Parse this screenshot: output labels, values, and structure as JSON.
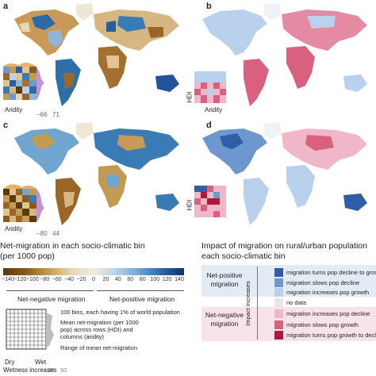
{
  "panels": {
    "a": {
      "letter": "a",
      "inset_xlabel": "Aridity",
      "inset_min": "−66",
      "inset_max": "71"
    },
    "b": {
      "letter": "b",
      "inset_xlabel": "Aridity",
      "inset_ylabel": "HDI"
    },
    "c": {
      "letter": "c",
      "inset_xlabel": "Aridity",
      "inset_min": "−80",
      "inset_max": "44"
    },
    "d": {
      "letter": "d",
      "inset_ylabel": "HDI"
    }
  },
  "left_legend": {
    "title_line1": "Net-migration in each socio-climatic bin",
    "title_line2": "(per 1000 pop)",
    "colorbar_ticks": [
      "−140",
      "−120",
      "−100",
      "−80",
      "−60",
      "−40",
      "−20",
      "0",
      "20",
      "40",
      "60",
      "80",
      "100",
      "120",
      "140"
    ],
    "neg_label": "Net-negative migration",
    "pos_label": "Net-positive migration",
    "grid_note1": "100 bins, each having 1% of world population",
    "grid_note2": "Mean net-migration (per 1000 pop) across rows (HDI) and columns (aridity)",
    "grid_note3": "Range of mean net-migration",
    "dry": "Dry",
    "wet": "Wet",
    "wetness": "Wetness increases",
    "range_lo": "20",
    "range_hi": "50"
  },
  "right_legend": {
    "title_line1": "Impact of migration on rural/urban population",
    "title_line2": "each socio-climatic bin",
    "positive_group": "Net-positive migration",
    "negative_group": "Net-negative migration",
    "axis_label": "Impact increases",
    "items": [
      {
        "label": "migration turns pop decline to growth",
        "color": "#2f5ea8"
      },
      {
        "label": "migration slows pop decline",
        "color": "#6f97cf"
      },
      {
        "label": "migration increases pop growth",
        "color": "#b9d1ec"
      },
      {
        "label": "no data",
        "color": "#e6e6e6"
      },
      {
        "label": "migration increases pop decline",
        "color": "#f0b7c8"
      },
      {
        "label": "migration slows pop growth",
        "color": "#d9607f"
      },
      {
        "label": "migration turns pop growth to decline",
        "color": "#b01838"
      }
    ]
  },
  "colors": {
    "neg_dark": "#5b3a0e",
    "neg_mid": "#c49a53",
    "neutral": "#f1ecdf",
    "pos_mid": "#6fa5cf",
    "pos_dark": "#0d2f6e"
  }
}
